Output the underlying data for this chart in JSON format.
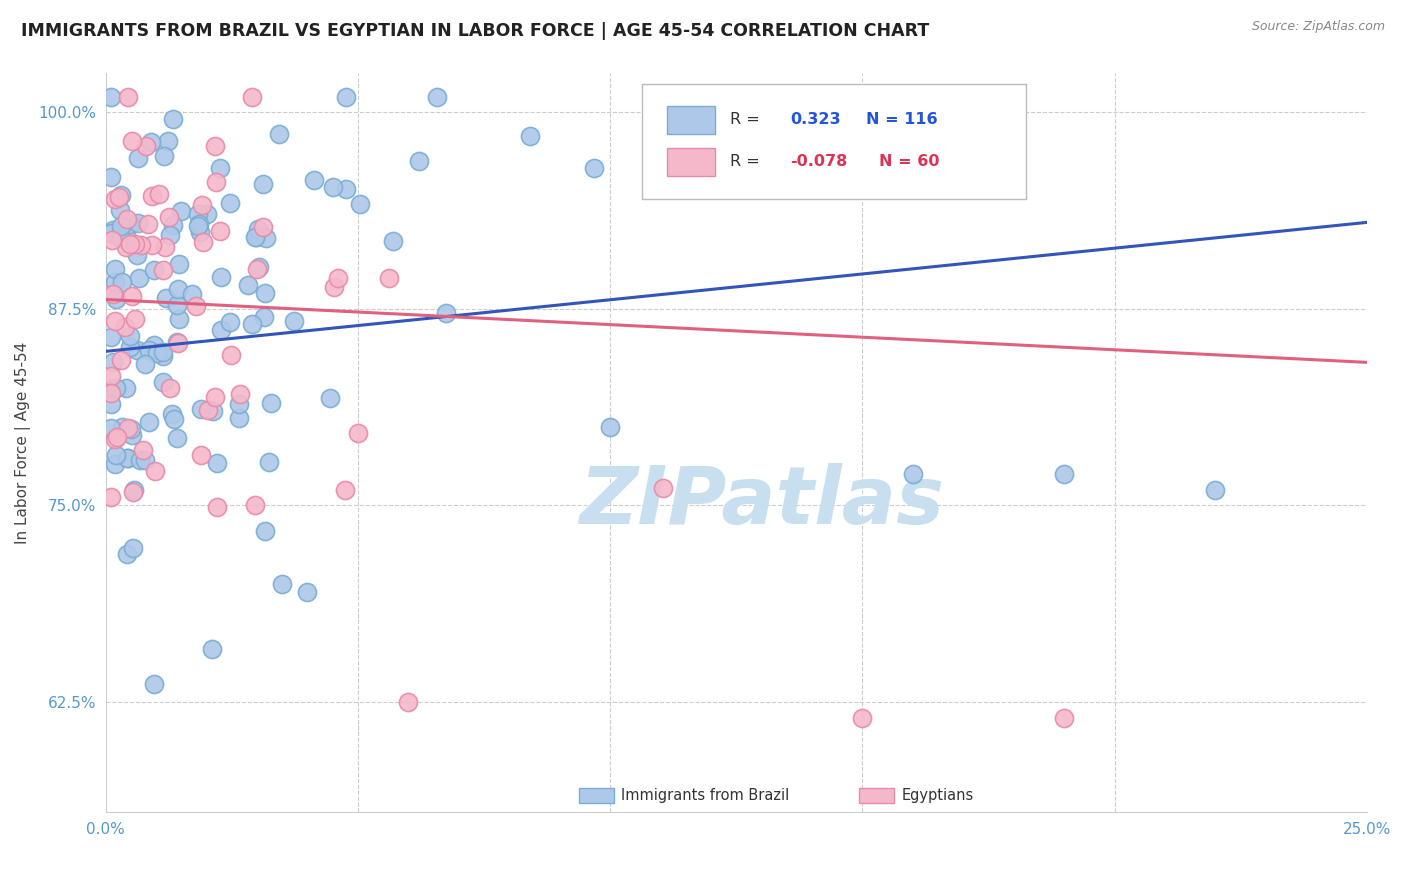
{
  "title": "IMMIGRANTS FROM BRAZIL VS EGYPTIAN IN LABOR FORCE | AGE 45-54 CORRELATION CHART",
  "source": "Source: ZipAtlas.com",
  "ylabel": "In Labor Force | Age 45-54",
  "xmin": 0.0,
  "xmax": 0.25,
  "ymin": 0.555,
  "ymax": 1.025,
  "brazil_R": 0.323,
  "brazil_N": 116,
  "egypt_R": -0.078,
  "egypt_N": 60,
  "brazil_color": "#adc8e8",
  "brazil_edge": "#7aadd4",
  "egypt_color": "#f5b8cb",
  "egypt_edge": "#e88aaa",
  "brazil_line_color": "#3355bb",
  "egypt_line_color": "#e06080",
  "legend_R_brazil_color": "#2255dd",
  "legend_R_egypt_color": "#dd3355",
  "watermark_color": "#c8dff0",
  "brazil_line_y0": 0.848,
  "brazil_line_y1": 0.93,
  "egypt_line_y0": 0.881,
  "egypt_line_y1": 0.841
}
